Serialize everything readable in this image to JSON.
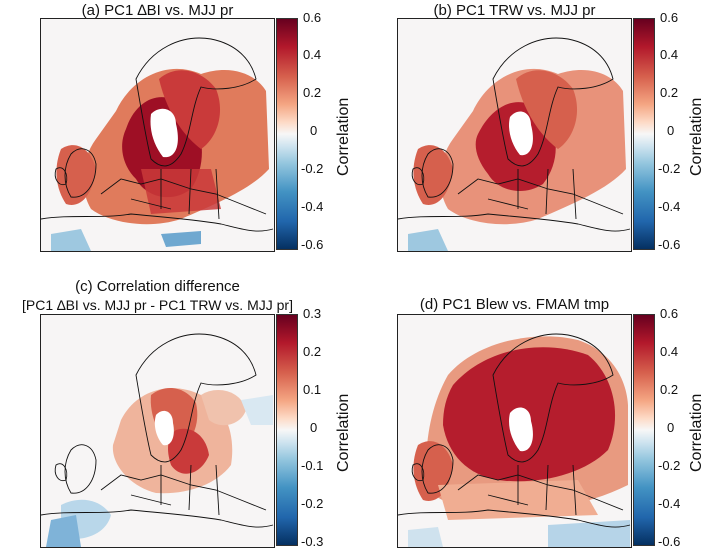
{
  "panels": [
    {
      "id": "a",
      "title": "(a) PC1 ∆BI vs. MJJ pr",
      "colorbar": {
        "label": "Correlation",
        "ticks": [
          "0.6",
          "0.4",
          "0.2",
          "0",
          "-0.2",
          "-0.4",
          "-0.6"
        ]
      }
    },
    {
      "id": "b",
      "title": "(b) PC1 TRW vs. MJJ pr",
      "colorbar": {
        "label": "Correlation",
        "ticks": [
          "0.6",
          "0.4",
          "0.2",
          "0",
          "-0.2",
          "-0.4",
          "-0.6"
        ]
      }
    },
    {
      "id": "c",
      "title_line1": "(c) Correlation difference",
      "title_line2": "[PC1 ∆BI vs. MJJ pr - PC1 TRW vs. MJJ pr]",
      "colorbar": {
        "label": "Correlation",
        "ticks": [
          "0.3",
          "0.2",
          "0.1",
          "0",
          "-0.1",
          "-0.2",
          "-0.3"
        ]
      }
    },
    {
      "id": "d",
      "title": "(d) PC1 Blew vs. FMAM tmp",
      "colorbar": {
        "label": "Correlation",
        "ticks": [
          "0.6",
          "0.4",
          "0.2",
          "0",
          "-0.2",
          "-0.4",
          "-0.6"
        ]
      }
    }
  ],
  "colors": {
    "strong_positive": "#9e0f25",
    "positive": "#c93a3a",
    "moderate": "#e07b5c",
    "weak": "#f4b79b",
    "neutral": "#f7f5f5",
    "negative": "#9ec8e0",
    "strong_negative": "#2b6aa8"
  }
}
